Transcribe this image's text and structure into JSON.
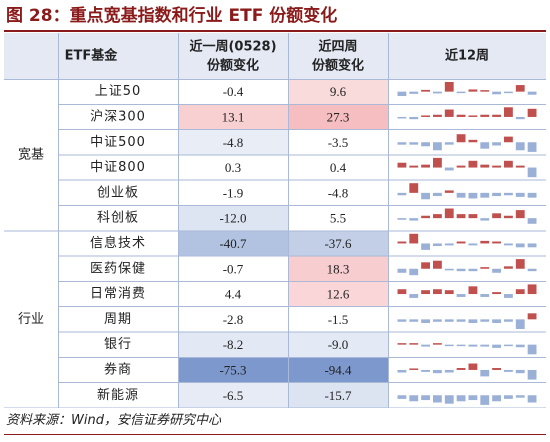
{
  "title": "图 28：重点宽基指数和行业 ETF 份额变化",
  "source": "资料来源：Wind，安信证券研究中心",
  "colors": {
    "header_bg": "#e4e9f4",
    "pos": "#c0504d",
    "neg": "#9bb0d6",
    "heat_pos": "#e8525a",
    "heat_neg": "#7d98cc",
    "grid": "#a9b9d7"
  },
  "header": {
    "col1": "ETF基金",
    "col2_line1": "近一周(0528)",
    "col2_line2": "份额变化",
    "col3_line1": "近四周",
    "col3_line2": "份额变化",
    "col4": "近12周"
  },
  "groups": [
    {
      "label": "宽基",
      "rows": [
        0,
        5
      ]
    },
    {
      "label": "行业",
      "rows": [
        6,
        12
      ]
    }
  ],
  "rows": [
    {
      "name": "上证50",
      "w1": -0.4,
      "w4": 9.6,
      "w1_text": "-0.4",
      "w4_text": "9.6",
      "spark": [
        -1.0,
        -0.5,
        0.4,
        -0.4,
        2.2,
        -0.3,
        0.5,
        0.3,
        -0.6,
        -0.3,
        1.5,
        -0.7
      ]
    },
    {
      "name": "沪深300",
      "w1": 13.1,
      "w4": 27.3,
      "w1_text": "13.1",
      "w4_text": "27.3",
      "spark": [
        -0.2,
        -0.3,
        0.2,
        0.3,
        1.0,
        0.3,
        0.2,
        0.3,
        0.3,
        1.3,
        -0.3,
        1.1
      ]
    },
    {
      "name": "中证500",
      "w1": -4.8,
      "w4": -3.5,
      "w1_text": "-4.8",
      "w4_text": "-3.5",
      "spark": [
        -0.3,
        -0.3,
        -0.5,
        -1.0,
        -0.3,
        1.0,
        0.3,
        -0.8,
        -0.4,
        0.7,
        -1.0,
        -1.2
      ]
    },
    {
      "name": "中证800",
      "w1": 0.3,
      "w4": 0.4,
      "w1_text": "0.3",
      "w4_text": "0.4",
      "spark": [
        0.5,
        0.2,
        0.3,
        1.0,
        -0.3,
        0.2,
        0.7,
        0.3,
        0.2,
        0.7,
        0.2,
        -1.0
      ]
    },
    {
      "name": "创业板",
      "w1": -1.9,
      "w4": -4.8,
      "w1_text": "-1.9",
      "w4_text": "-4.8",
      "spark": [
        -0.3,
        1.2,
        -0.8,
        -0.4,
        0.3,
        -0.6,
        -0.7,
        -0.6,
        -0.4,
        -0.3,
        -0.5,
        -0.6
      ]
    },
    {
      "name": "科创板",
      "w1": -12.0,
      "w4": 5.5,
      "w1_text": "-12.0",
      "w4_text": "5.5",
      "spark": [
        -0.2,
        -0.3,
        0.3,
        0.5,
        1.2,
        0.5,
        0.5,
        -0.3,
        0.6,
        0.3,
        1.0,
        -0.7
      ]
    },
    {
      "name": "信息技术",
      "w1": -40.7,
      "w4": -37.6,
      "w1_text": "-40.7",
      "w4_text": "-37.6",
      "spark": [
        0.3,
        1.5,
        -1.0,
        -0.4,
        -0.3,
        0.3,
        -0.3,
        0.4,
        0.3,
        -0.3,
        -0.6,
        -0.6
      ]
    },
    {
      "name": "医药保健",
      "w1": -0.7,
      "w4": 18.3,
      "w1_text": "-0.7",
      "w4_text": "18.3",
      "spark": [
        -0.5,
        -0.8,
        0.8,
        1.0,
        -0.2,
        -0.3,
        -0.3,
        0.2,
        -0.5,
        0.3,
        1.2,
        -0.3
      ]
    },
    {
      "name": "日常消费",
      "w1": 4.4,
      "w4": 12.6,
      "w1_text": "4.4",
      "w4_text": "12.6",
      "spark": [
        0.5,
        -0.4,
        0.4,
        0.5,
        0.4,
        -0.3,
        0.8,
        -0.3,
        0.2,
        -0.4,
        0.5,
        1.0
      ]
    },
    {
      "name": "周期",
      "w1": -2.8,
      "w4": -1.5,
      "w1_text": "-2.8",
      "w4_text": "-1.5",
      "spark": [
        -0.2,
        -0.2,
        -0.3,
        -0.2,
        -0.2,
        -0.2,
        -0.3,
        -0.2,
        -0.3,
        -0.2,
        -0.8,
        0.5
      ]
    },
    {
      "name": "银行",
      "w1": -8.2,
      "w4": -9.0,
      "w1_text": "-8.2",
      "w4_text": "-9.0",
      "spark": [
        0.2,
        0.2,
        -0.3,
        0.2,
        -0.2,
        -0.2,
        -0.3,
        -0.3,
        -0.5,
        -0.2,
        -0.4,
        -1.5
      ]
    },
    {
      "name": "券商",
      "w1": -75.3,
      "w4": -94.4,
      "w1_text": "-75.3",
      "w4_text": "-94.4",
      "spark": [
        -0.4,
        0.2,
        -0.3,
        -0.5,
        -0.4,
        0.3,
        1.0,
        -1.0,
        0.3,
        -0.3,
        -0.5,
        -1.5
      ]
    },
    {
      "name": "新能源",
      "w1": -6.5,
      "w4": -15.7,
      "w1_text": "-6.5",
      "w4_text": "-15.7",
      "spark": [
        -0.3,
        -0.5,
        -0.4,
        -0.6,
        -0.7,
        -0.5,
        -0.4,
        -0.8,
        -0.5,
        -0.3,
        -0.2,
        -0.6
      ]
    }
  ]
}
